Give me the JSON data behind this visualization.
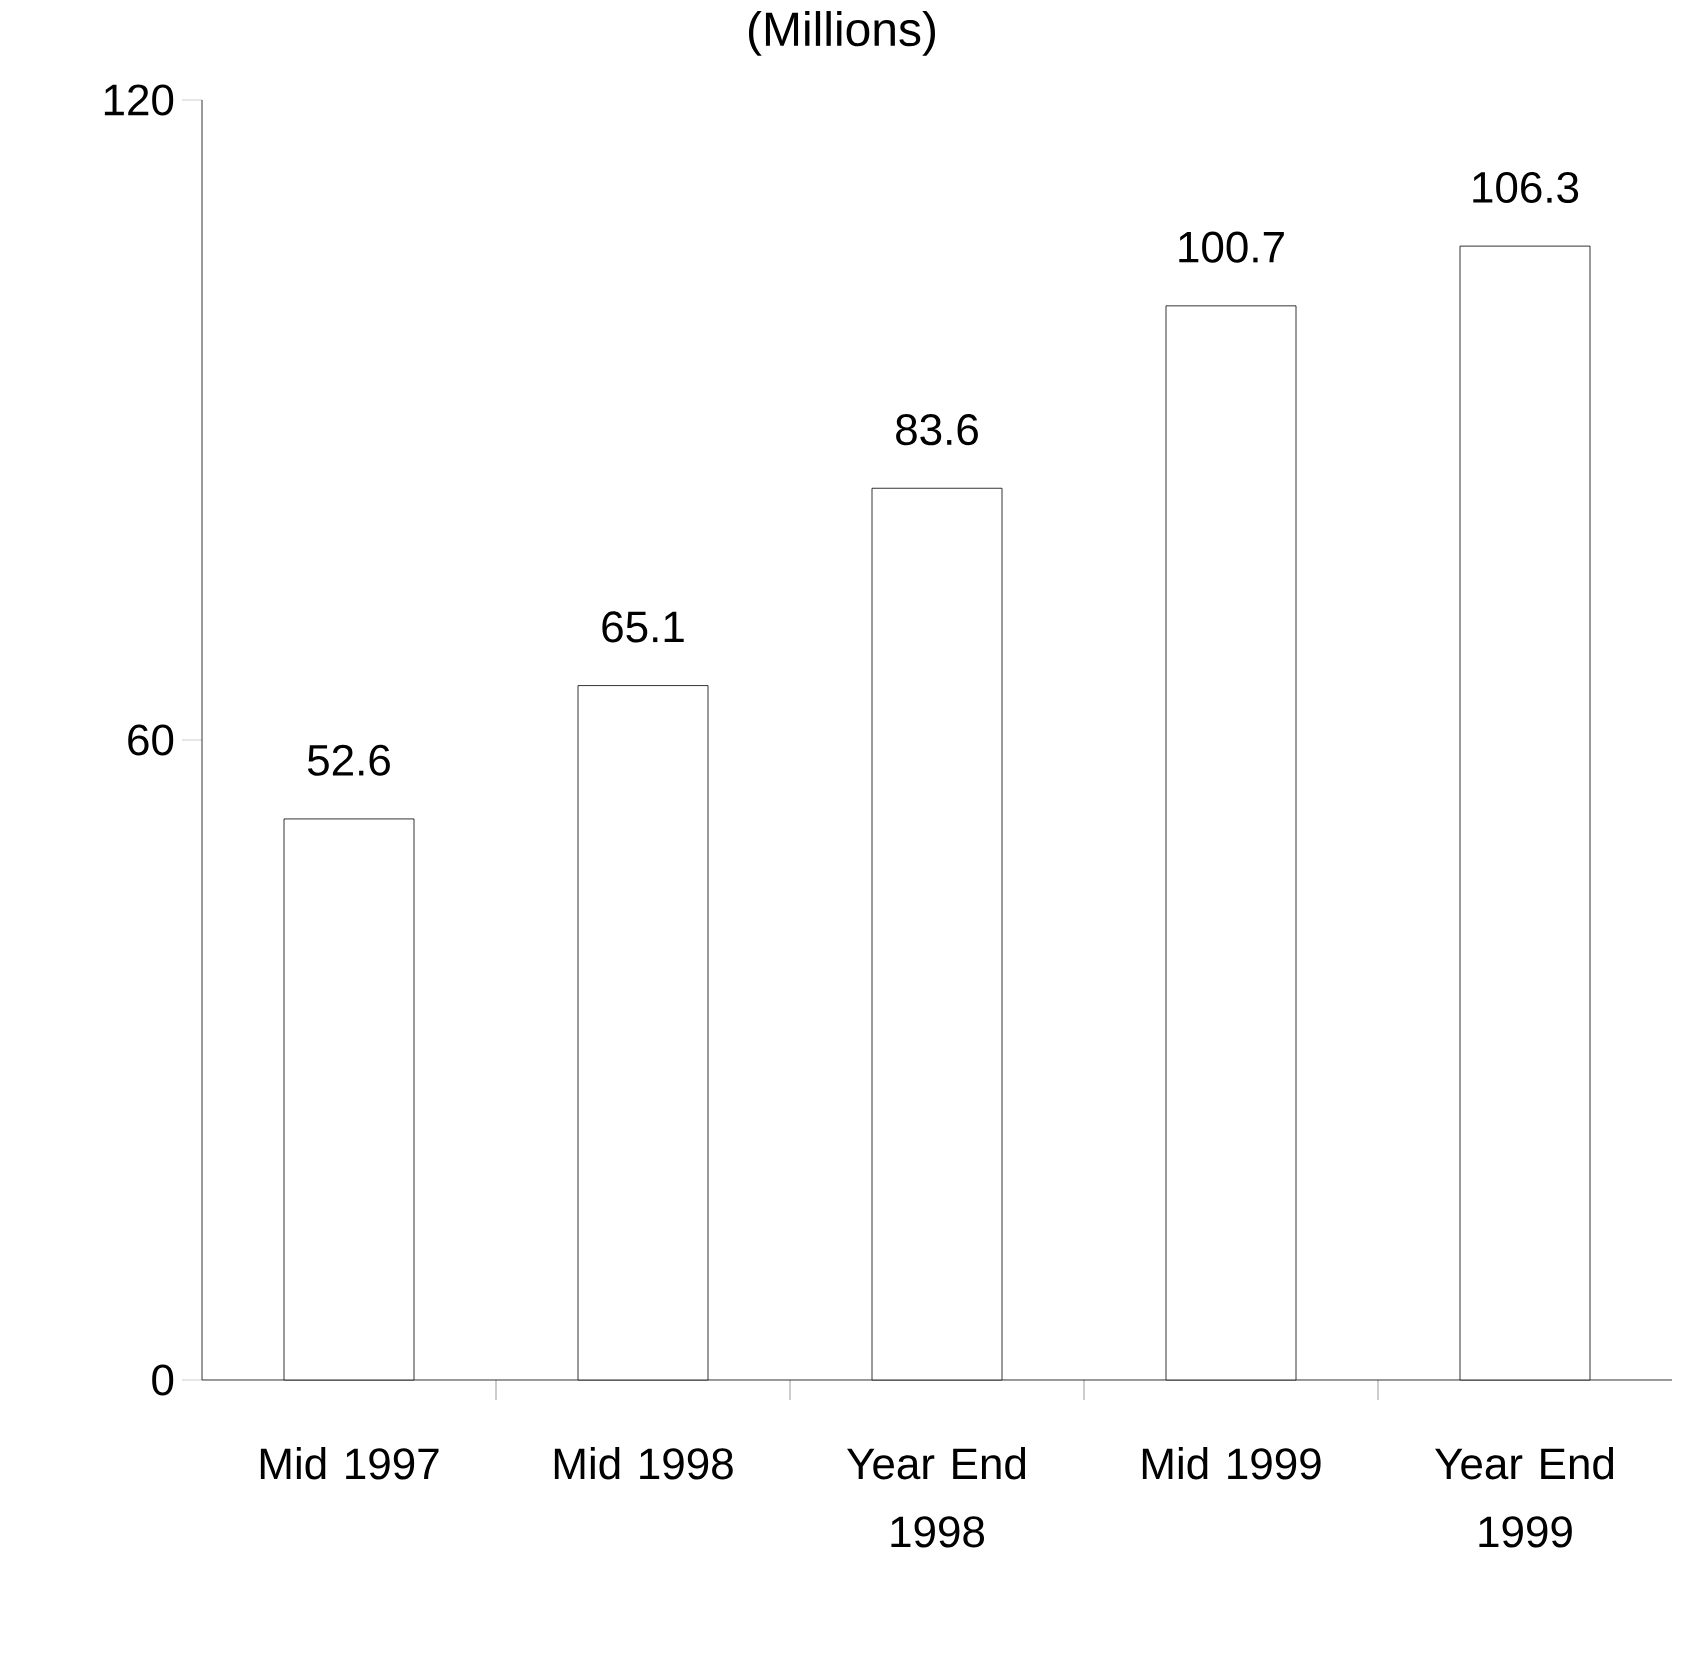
{
  "chart_data": {
    "type": "bar",
    "title": "(Millions)",
    "categories": [
      "Mid 1997",
      "Mid 1998",
      "Year End 1998",
      "Mid 1999",
      "Year End 1999"
    ],
    "values": [
      52.6,
      65.1,
      83.6,
      100.7,
      106.3
    ],
    "color": "#ffffff",
    "ylim": [
      0,
      120
    ],
    "yticks": [
      0,
      60,
      120
    ],
    "data_labels": true,
    "grid": false
  }
}
